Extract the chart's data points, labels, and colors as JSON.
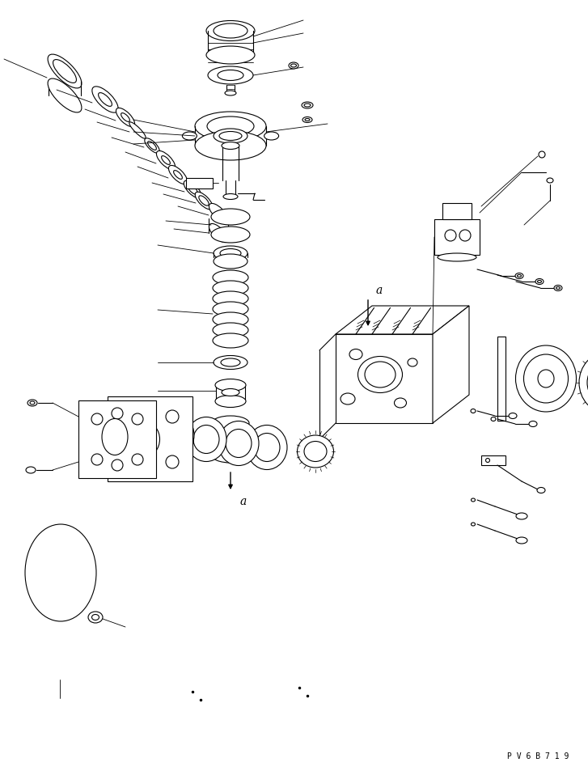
{
  "bg_color": "#ffffff",
  "line_color": "#000000",
  "fig_width": 7.27,
  "fig_height": 9.58,
  "watermark": "P V 6 B 7 1 9"
}
